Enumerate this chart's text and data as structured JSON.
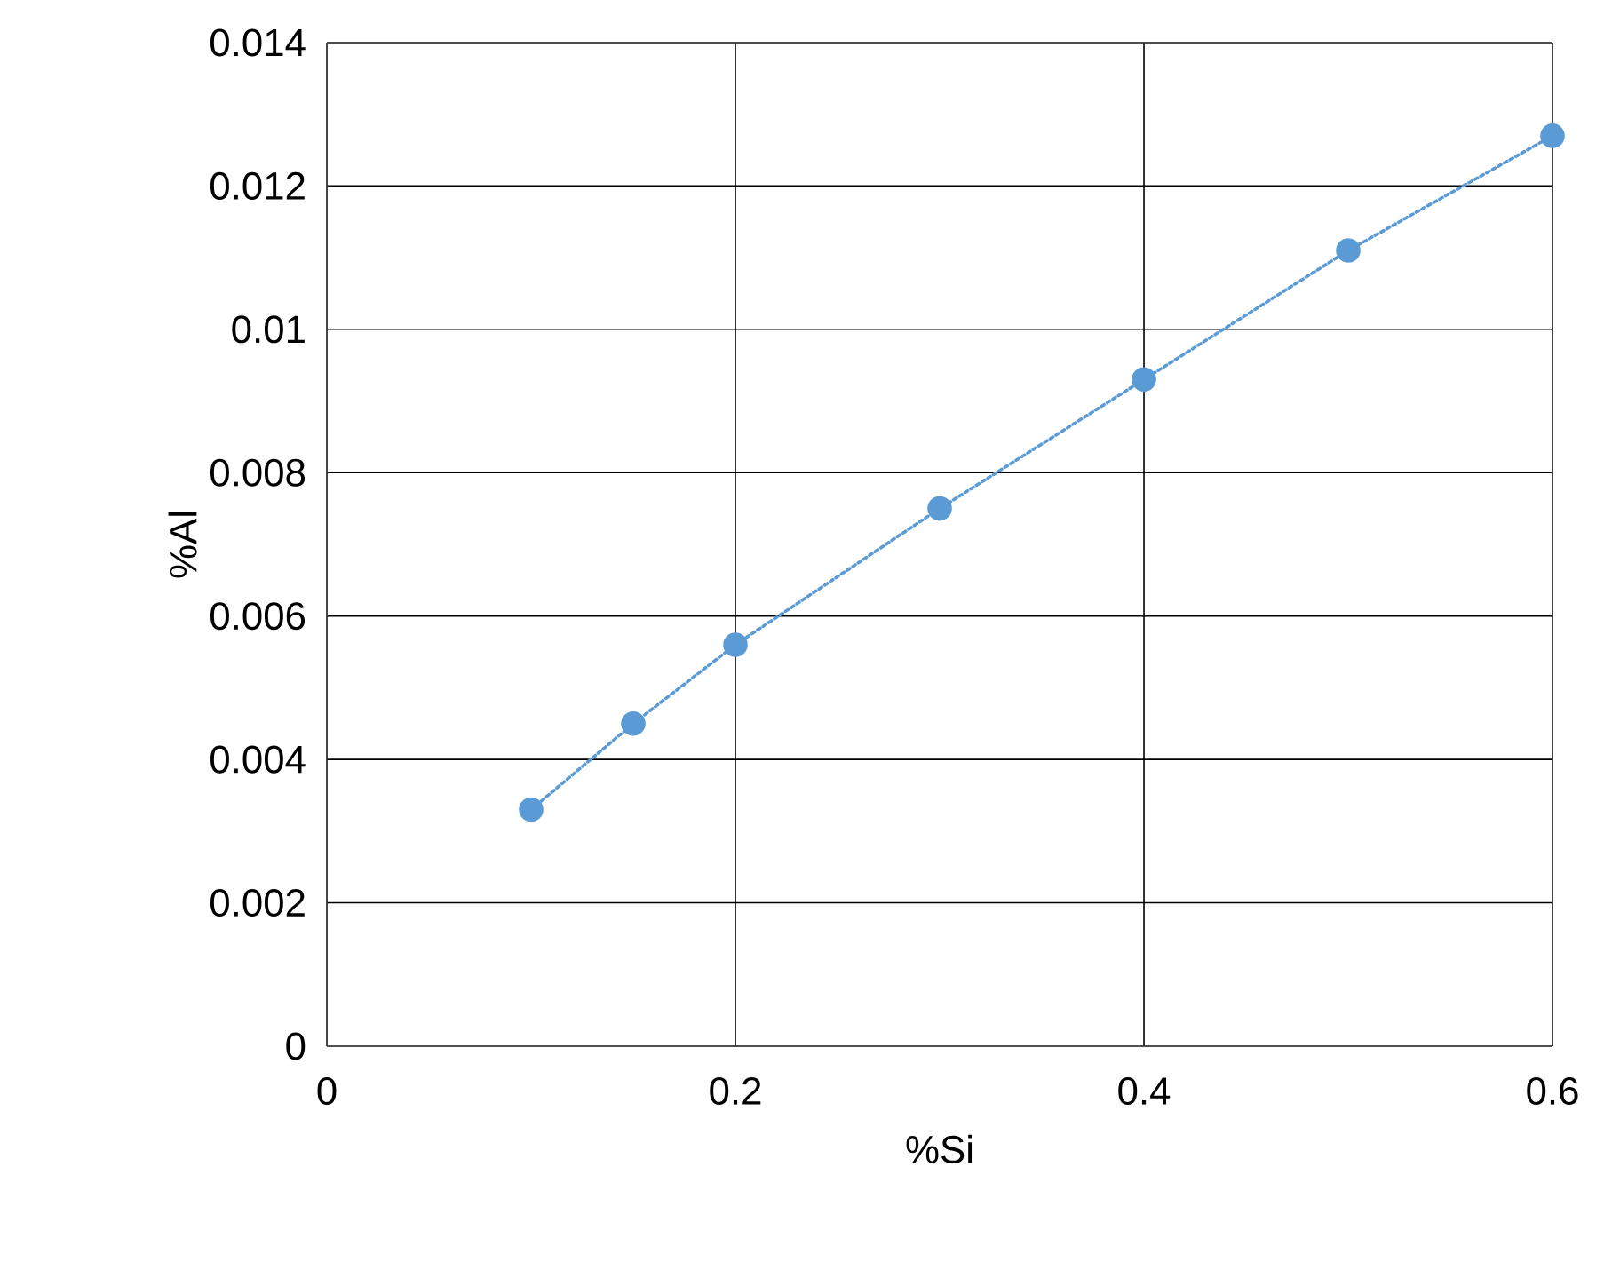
{
  "chart_data": {
    "type": "line",
    "xlabel": "%Si",
    "ylabel": "%Al",
    "x": [
      0.1,
      0.15,
      0.2,
      0.3,
      0.4,
      0.5,
      0.6
    ],
    "series": [
      {
        "color": "#5b9bd5",
        "values": [
          0.0033,
          0.0045,
          0.0056,
          0.0075,
          0.0093,
          0.0111,
          0.0127
        ]
      }
    ],
    "xlim": [
      0,
      0.6
    ],
    "ylim": [
      0,
      0.014
    ],
    "xticks": [
      0,
      0.2,
      0.4,
      0.6
    ],
    "yticks": [
      0,
      0.002,
      0.004,
      0.006,
      0.008,
      0.01,
      0.012,
      0.014
    ],
    "grid": true,
    "marker": "circle",
    "line_style": "dotted"
  }
}
